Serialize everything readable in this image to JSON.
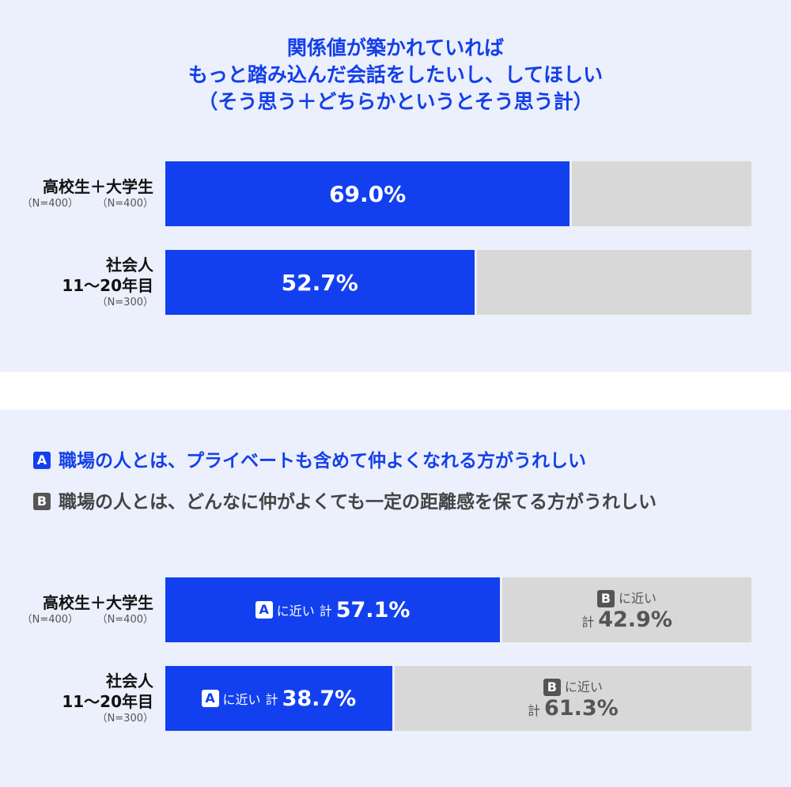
{
  "chart_data": [
    {
      "type": "bar",
      "orientation": "horizontal-stacked",
      "title": [
        "関係値が築かれていれば",
        "もっと踏み込んだ会話をしたいし、してほしい",
        "（そう思う＋どちらかというとそう思う計）"
      ],
      "categories": [
        {
          "name": "高校生＋大学生",
          "n": [
            "（N=400）",
            "（N=400）"
          ]
        },
        {
          "name": [
            "社会人",
            "11〜20年目"
          ],
          "n": [
            "（N=300）"
          ]
        }
      ],
      "values": [
        69.0,
        52.7
      ],
      "labels": [
        "69.0%",
        "52.7%"
      ],
      "xlim": [
        0,
        100
      ],
      "colors": {
        "value": "#1340ef",
        "rest": "#d8d8d8"
      }
    },
    {
      "type": "bar",
      "orientation": "horizontal-stacked",
      "legend": [
        {
          "key": "A",
          "text": "職場の人とは、プライベートも含めて仲よくなれる方がうれしい",
          "color": "#1340ef"
        },
        {
          "key": "B",
          "text": "職場の人とは、どんなに仲がよくても一定の距離感を保てる方がうれしい",
          "color": "#555555"
        }
      ],
      "categories": [
        {
          "name": "高校生＋大学生",
          "n": [
            "（N=400）",
            "（N=400）"
          ]
        },
        {
          "name": [
            "社会人",
            "11〜20年目"
          ],
          "n": [
            "（N=300）"
          ]
        }
      ],
      "series": [
        {
          "name": "Aに近い 計",
          "values": [
            57.1,
            38.7
          ],
          "labels": [
            "57.1%",
            "38.7%"
          ]
        },
        {
          "name": "Bに近い 計",
          "values": [
            42.9,
            61.3
          ],
          "labels": [
            "42.9%",
            "61.3%"
          ]
        }
      ],
      "near": "に近い",
      "total": "計",
      "xlim": [
        0,
        100
      ],
      "colors": {
        "A": "#1340ef",
        "B": "#d8d8d8"
      }
    }
  ]
}
